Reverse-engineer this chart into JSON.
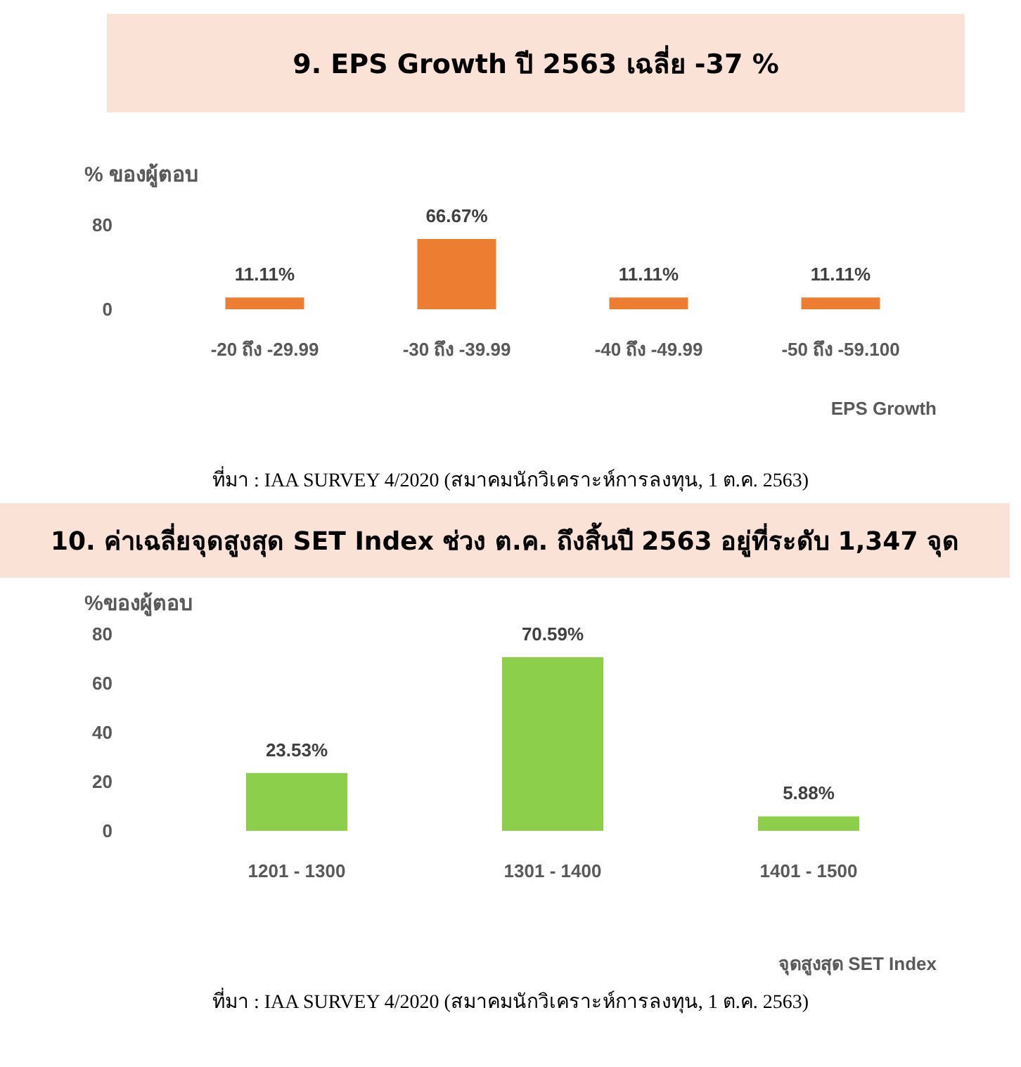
{
  "chart_data": [
    {
      "type": "bar",
      "title": "9. EPS Growth ปี 2563 เฉลี่ย  -37 %",
      "ylabel": "% ของผู้ตอบ",
      "xlabel": "EPS Growth",
      "categories": [
        "-20 ถึง -29.99",
        "-30 ถึง -39.99",
        "-40 ถึง -49.99",
        "-50 ถึง -59.100"
      ],
      "values": [
        11.11,
        66.67,
        11.11,
        11.11
      ],
      "value_labels": [
        "11.11%",
        "66.67%",
        "11.11%",
        "11.11%"
      ],
      "color": "#ed7d31",
      "ylim": [
        0,
        80
      ],
      "yticks": [
        0,
        80
      ],
      "grid": false,
      "annotations": [
        "ที่มา : IAA SURVEY 4/2020 (สมาคมนักวิเคราะห์การลงทุน, 1 ต.ค. 2563)"
      ]
    },
    {
      "type": "bar",
      "title": "10. ค่าเฉลี่ยจุดสูงสุด SET Index ช่วง ต.ค. ถึงสิ้นปี 2563 อยู่ที่ระดับ 1,347 จุด",
      "ylabel": "%ของผู้ตอบ",
      "xlabel": "จุดสูงสุด SET Index",
      "categories": [
        "1201 - 1300",
        "1301 - 1400",
        "1401 - 1500"
      ],
      "values": [
        23.53,
        70.59,
        5.88
      ],
      "value_labels": [
        "23.53%",
        "70.59%",
        "5.88%"
      ],
      "color": "#8ccf4a",
      "ylim": [
        0,
        80
      ],
      "yticks": [
        0,
        20,
        40,
        60,
        80
      ],
      "grid": false,
      "annotations": [
        "ที่มา : IAA SURVEY 4/2020 (สมาคมนักวิเคราะห์การลงทุน, 1 ต.ค. 2563)"
      ]
    }
  ]
}
